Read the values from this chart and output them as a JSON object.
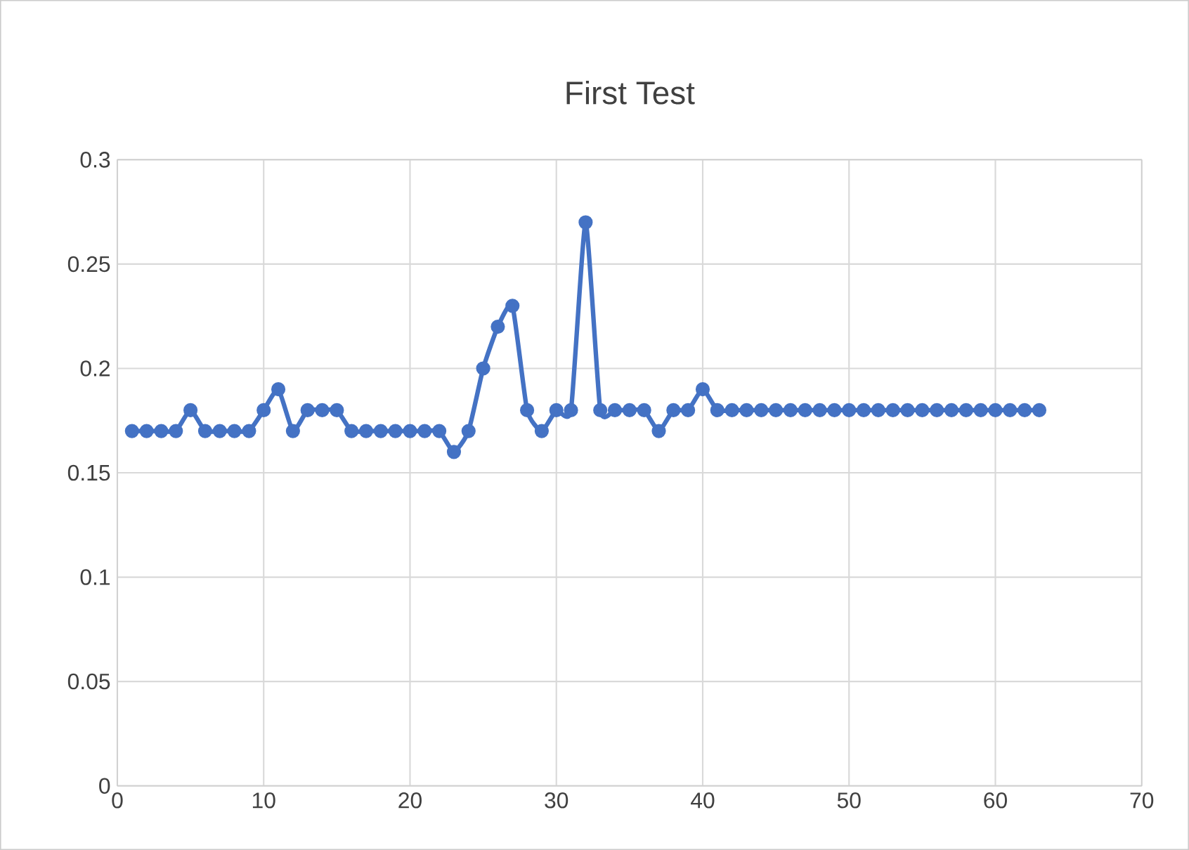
{
  "chart_data": {
    "type": "line",
    "title": "First Test",
    "x": [
      1,
      2,
      3,
      4,
      5,
      6,
      7,
      8,
      9,
      10,
      11,
      12,
      13,
      14,
      15,
      16,
      17,
      18,
      19,
      20,
      21,
      22,
      23,
      24,
      25,
      26,
      27,
      28,
      29,
      30,
      31,
      32,
      33,
      34,
      35,
      36,
      37,
      38,
      39,
      40,
      41,
      42,
      43,
      44,
      45,
      46,
      47,
      48,
      49,
      50,
      51,
      52,
      53,
      54,
      55,
      56,
      57,
      58,
      59,
      60,
      61,
      62,
      63
    ],
    "series": [
      {
        "color": "#4472c4",
        "values": [
          0.17,
          0.17,
          0.17,
          0.17,
          0.18,
          0.17,
          0.17,
          0.17,
          0.17,
          0.18,
          0.19,
          0.17,
          0.18,
          0.18,
          0.18,
          0.17,
          0.17,
          0.17,
          0.17,
          0.17,
          0.17,
          0.17,
          0.16,
          0.17,
          0.2,
          0.22,
          0.23,
          0.18,
          0.17,
          0.18,
          0.18,
          0.27,
          0.18,
          0.18,
          0.18,
          0.18,
          0.17,
          0.18,
          0.18,
          0.19,
          0.18,
          0.18,
          0.18,
          0.18,
          0.18,
          0.18,
          0.18,
          0.18,
          0.18,
          0.18,
          0.18,
          0.18,
          0.18,
          0.18,
          0.18,
          0.18,
          0.18,
          0.18,
          0.18,
          0.18,
          0.18,
          0.18,
          0.18
        ]
      }
    ],
    "xlim": [
      0,
      70
    ],
    "xticks": [
      0,
      10,
      20,
      30,
      40,
      50,
      60,
      70
    ],
    "ylim": [
      0,
      0.3
    ],
    "yticks": [
      0,
      0.05,
      0.1,
      0.15,
      0.2,
      0.25,
      0.3
    ],
    "grid": true,
    "marker": "circle",
    "line_style": "solid"
  }
}
